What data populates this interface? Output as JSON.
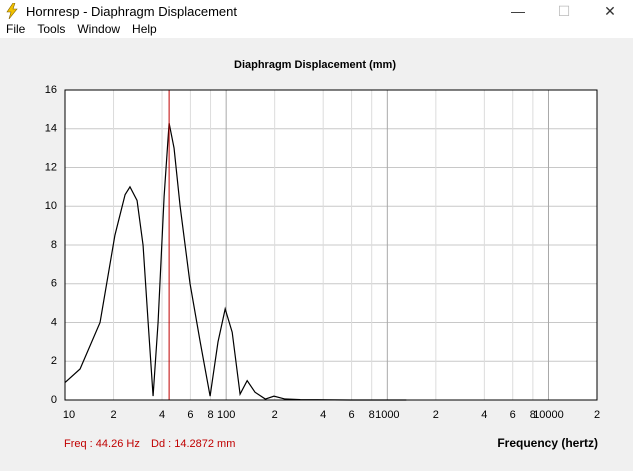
{
  "window": {
    "title": "Hornresp - Diaphragm Displacement",
    "menu": [
      "File",
      "Tools",
      "Window",
      "Help"
    ]
  },
  "chart_data": {
    "type": "line",
    "title": "Diaphragm Displacement (mm)",
    "x_label": "Frequency (hertz)",
    "annotations": [
      "Freq : 44.26 Hz",
      "Dd : 14.2872 mm"
    ],
    "cursor_x": 44.26,
    "cursor_color": "#c00000",
    "xscale": "log",
    "grid": true,
    "xlim": [
      10,
      20000
    ],
    "ylim": [
      0,
      16
    ],
    "xticks": [
      10,
      {
        "value": 20,
        "label": "2"
      },
      {
        "value": 40,
        "label": "4"
      },
      {
        "value": 60,
        "label": "6"
      },
      {
        "value": 80,
        "label": "8"
      },
      100,
      {
        "value": 200,
        "label": "2"
      },
      {
        "value": 400,
        "label": "4"
      },
      {
        "value": 600,
        "label": "6"
      },
      {
        "value": 800,
        "label": "8"
      },
      1000,
      {
        "value": 2000,
        "label": "2"
      },
      {
        "value": 4000,
        "label": "4"
      },
      {
        "value": 6000,
        "label": "6"
      },
      {
        "value": 8000,
        "label": "8"
      },
      10000,
      {
        "value": 20000,
        "label": "2"
      }
    ],
    "yticks": [
      0,
      2,
      4,
      6,
      8,
      10,
      12,
      14,
      16
    ],
    "x": [
      10,
      12.4,
      16.5,
      20.4,
      23.6,
      25.3,
      28,
      30.5,
      32.8,
      35.2,
      37.8,
      41.2,
      44.26,
      47.5,
      51.8,
      59.7,
      69,
      79.5,
      89,
      98.6,
      109,
      122,
      135,
      151,
      175,
      198,
      232,
      288,
      590,
      1312
    ],
    "series": [
      {
        "name": "Diaphragm Displacement",
        "color": "#000000",
        "values": [
          0.9,
          1.6,
          4,
          8.5,
          10.6,
          11,
          10.3,
          8,
          4,
          0.2,
          4,
          10.5,
          14.29,
          13,
          10,
          6,
          3,
          0.2,
          3,
          4.7,
          3.5,
          0.3,
          1,
          0.4,
          0.05,
          0.2,
          0.05,
          0.02,
          0,
          0
        ]
      }
    ]
  }
}
